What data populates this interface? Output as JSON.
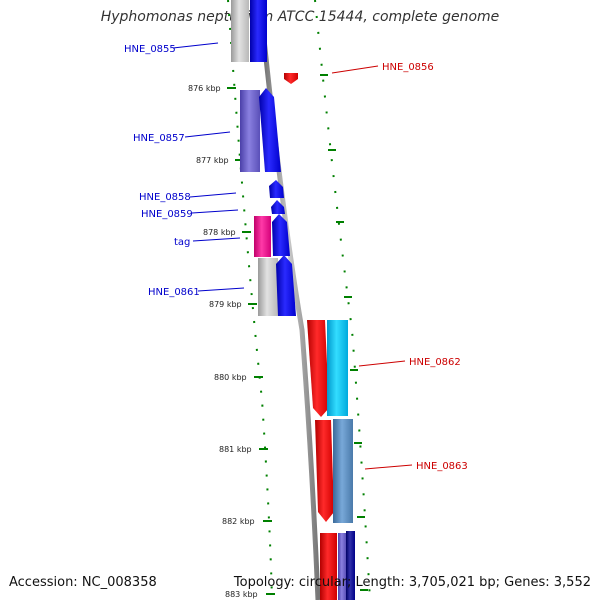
{
  "title": "Hyphomonas neptunium ATCC 15444, complete genome",
  "accession": "Accession: NC_008358",
  "summary": "Topology: circular; Length: 3,705,021 bp; Genes: 3,552",
  "colors": {
    "forward_label": "#0000cc",
    "reverse_label": "#cc0000",
    "backbone": "#888888",
    "tick": "#008000",
    "gene_forward": "#0000ee",
    "gene_reverse": "#ee0000"
  },
  "ticks": [
    "876 kbp",
    "877 kbp",
    "878 kbp",
    "879 kbp",
    "880 kbp",
    "881 kbp",
    "882 kbp",
    "883 kbp"
  ],
  "forward_genes": [
    "HNE_0855",
    "HNE_0857",
    "HNE_0858",
    "HNE_0859",
    "tag",
    "HNE_0861"
  ],
  "reverse_genes": [
    "HNE_0856",
    "HNE_0862",
    "HNE_0863"
  ]
}
